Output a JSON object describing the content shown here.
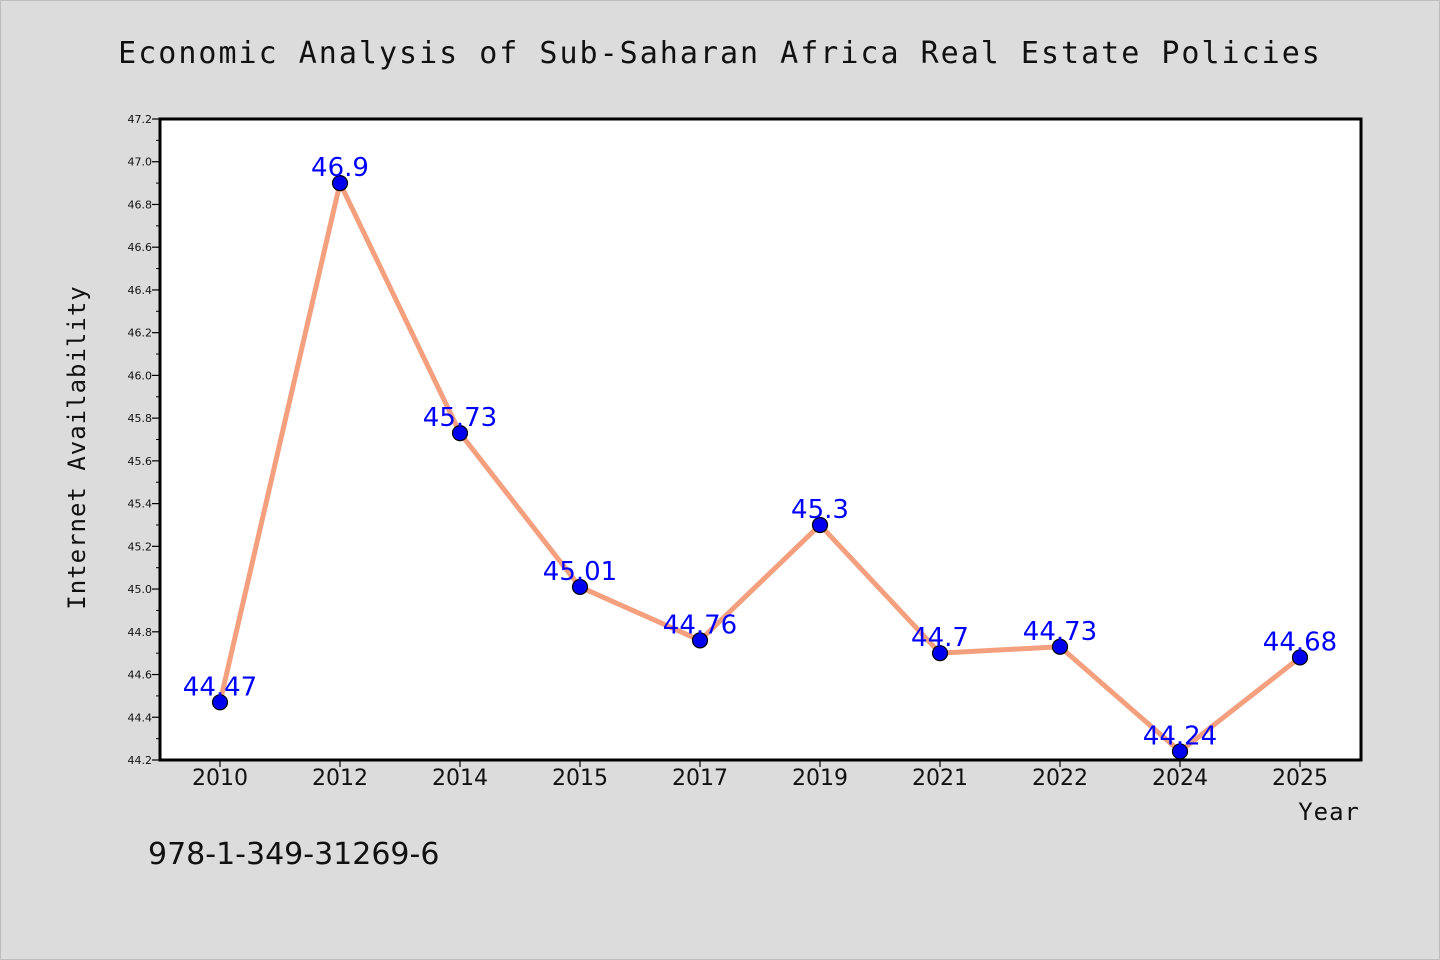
{
  "chart_data": {
    "type": "line",
    "title": "Economic Analysis of Sub-Saharan Africa Real Estate Policies",
    "xlabel": "Year",
    "ylabel": "Internet Availability",
    "categories": [
      "2010",
      "2012",
      "2014",
      "2015",
      "2017",
      "2019",
      "2021",
      "2022",
      "2024",
      "2025"
    ],
    "series": [
      {
        "values": [
          44.47,
          46.9,
          45.73,
          45.01,
          44.76,
          45.3,
          44.7,
          44.73,
          44.24,
          44.68
        ]
      }
    ],
    "data_labels": [
      "44.47",
      "46.9",
      "45.73",
      "45.01",
      "44.76",
      "45.3",
      "44.7",
      "44.73",
      "44.24",
      "44.68"
    ],
    "ylim": [
      44.2,
      47.2
    ],
    "yticks": [
      "44.2",
      "44.4",
      "44.6",
      "44.8",
      "45.0",
      "45.2",
      "45.4",
      "45.6",
      "45.8",
      "46.0",
      "46.2",
      "46.4",
      "46.6",
      "46.8",
      "47.0",
      "47.2"
    ],
    "grid": false,
    "colors": {
      "line": "#f4a07e",
      "marker": "#0000ee",
      "label": "#0000ff",
      "background": "#dcdcdc",
      "plot_background": "#ffffff"
    }
  },
  "footer_text": "978-1-349-31269-6"
}
